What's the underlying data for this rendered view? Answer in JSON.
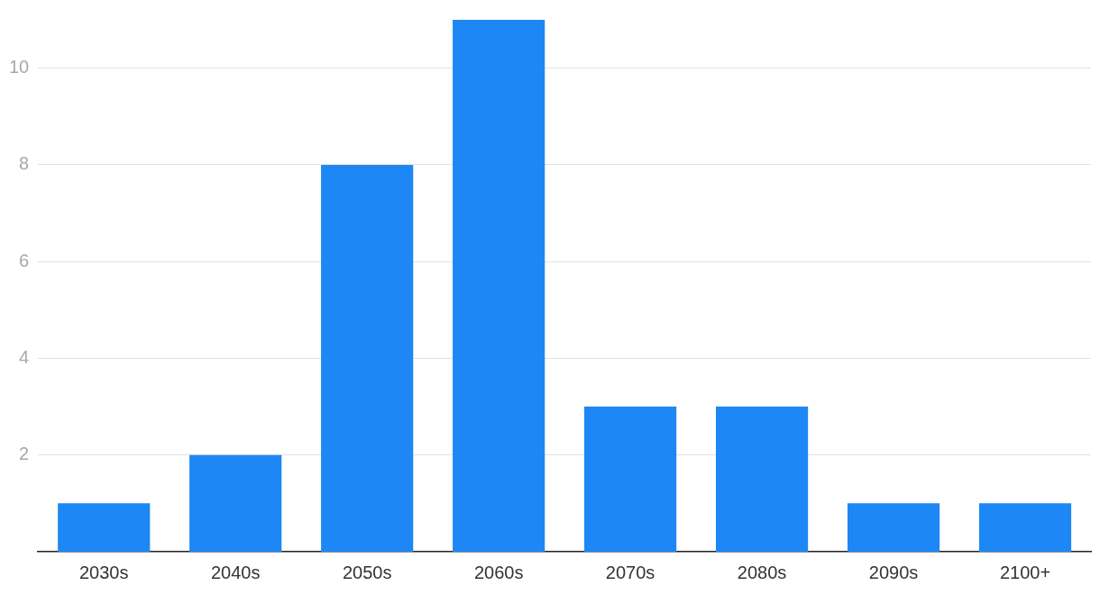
{
  "chart_data": {
    "type": "bar",
    "categories": [
      "2030s",
      "2040s",
      "2050s",
      "2060s",
      "2070s",
      "2080s",
      "2090s",
      "2100+"
    ],
    "values": [
      1,
      2,
      8,
      11,
      3,
      3,
      1,
      1
    ],
    "color": "#1d87f5",
    "ylim": [
      0,
      11
    ],
    "yticks": [
      2,
      4,
      6,
      8,
      10
    ],
    "grid": "y",
    "legend": false
  }
}
